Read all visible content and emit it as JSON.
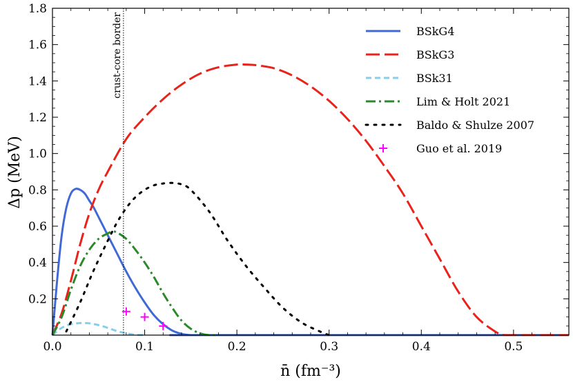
{
  "chart_data": {
    "type": "line",
    "xlabel": "n̄ (fm⁻³)",
    "ylabel": "Δp (MeV)",
    "xlim": [
      0.0,
      0.56
    ],
    "ylim": [
      0.0,
      1.8
    ],
    "xticks": [
      0.0,
      0.1,
      0.2,
      0.3,
      0.4,
      0.5
    ],
    "xtick_labels": [
      "0.0",
      "0.1",
      "0.2",
      "0.3",
      "0.4",
      "0.5"
    ],
    "yticks": [
      0.2,
      0.4,
      0.6,
      0.8,
      1.0,
      1.2,
      1.4,
      1.6,
      1.8
    ],
    "ytick_labels": [
      "0.2",
      "0.4",
      "0.6",
      "0.8",
      "1.0",
      "1.2",
      "1.4",
      "1.6",
      "1.8"
    ],
    "grid": false,
    "legend_position": "top-right",
    "vertical_line": {
      "x": 0.077,
      "label": "crust-core border"
    },
    "series": [
      {
        "name": "BSkG4",
        "color": "#4169d6",
        "style": "solid",
        "x": [
          0.0,
          0.005,
          0.01,
          0.015,
          0.02,
          0.025,
          0.03,
          0.035,
          0.04,
          0.045,
          0.05,
          0.06,
          0.07,
          0.08,
          0.09,
          0.1,
          0.11,
          0.12,
          0.13,
          0.14,
          0.15,
          0.16,
          0.56
        ],
        "y": [
          0.0,
          0.3,
          0.55,
          0.7,
          0.78,
          0.805,
          0.8,
          0.78,
          0.74,
          0.7,
          0.65,
          0.55,
          0.45,
          0.35,
          0.26,
          0.18,
          0.11,
          0.06,
          0.025,
          0.007,
          0.0,
          0.0,
          0.0
        ]
      },
      {
        "name": "BSkG3",
        "color": "#e8231c",
        "style": "dashed",
        "x": [
          0.0,
          0.01,
          0.02,
          0.03,
          0.04,
          0.05,
          0.06,
          0.08,
          0.1,
          0.12,
          0.14,
          0.16,
          0.18,
          0.2,
          0.21,
          0.22,
          0.24,
          0.26,
          0.28,
          0.3,
          0.32,
          0.34,
          0.36,
          0.38,
          0.4,
          0.42,
          0.44,
          0.46,
          0.48,
          0.49,
          0.5,
          0.56
        ],
        "y": [
          0.0,
          0.12,
          0.3,
          0.5,
          0.67,
          0.8,
          0.9,
          1.08,
          1.2,
          1.3,
          1.38,
          1.44,
          1.475,
          1.49,
          1.49,
          1.487,
          1.47,
          1.43,
          1.37,
          1.29,
          1.19,
          1.07,
          0.93,
          0.78,
          0.6,
          0.42,
          0.24,
          0.1,
          0.02,
          0.0,
          0.0,
          0.0
        ]
      },
      {
        "name": "BSk31",
        "color": "#87ceeb",
        "style": "dashed-short",
        "x": [
          0.0,
          0.01,
          0.02,
          0.03,
          0.04,
          0.05,
          0.06,
          0.07,
          0.08,
          0.09,
          0.1
        ],
        "y": [
          0.0,
          0.04,
          0.06,
          0.066,
          0.065,
          0.055,
          0.04,
          0.022,
          0.01,
          0.002,
          0.0
        ]
      },
      {
        "name": "Lim & Holt 2021",
        "color": "#2a8a2a",
        "style": "dashdot",
        "x": [
          0.0,
          0.01,
          0.02,
          0.03,
          0.04,
          0.05,
          0.06,
          0.065,
          0.07,
          0.08,
          0.09,
          0.1,
          0.11,
          0.12,
          0.13,
          0.14,
          0.15,
          0.16,
          0.17,
          0.18
        ],
        "y": [
          0.0,
          0.1,
          0.25,
          0.38,
          0.47,
          0.53,
          0.56,
          0.57,
          0.565,
          0.53,
          0.47,
          0.4,
          0.32,
          0.23,
          0.15,
          0.08,
          0.035,
          0.01,
          0.0,
          0.0
        ]
      },
      {
        "name": "Baldo & Shulze 2007",
        "color": "#000000",
        "style": "dotted-loose",
        "x": [
          0.015,
          0.03,
          0.045,
          0.06,
          0.07,
          0.08,
          0.09,
          0.1,
          0.11,
          0.12,
          0.13,
          0.14,
          0.15,
          0.17,
          0.19,
          0.21,
          0.23,
          0.25,
          0.27,
          0.29,
          0.3
        ],
        "y": [
          0.02,
          0.18,
          0.36,
          0.52,
          0.62,
          0.7,
          0.76,
          0.8,
          0.825,
          0.835,
          0.838,
          0.83,
          0.8,
          0.68,
          0.52,
          0.38,
          0.26,
          0.15,
          0.07,
          0.02,
          0.0
        ]
      },
      {
        "name": "Guo et al. 2019",
        "color": "#ff00ff",
        "style": "markers-plus",
        "x": [
          0.08,
          0.1,
          0.12
        ],
        "y": [
          0.13,
          0.1,
          0.05
        ]
      }
    ]
  }
}
